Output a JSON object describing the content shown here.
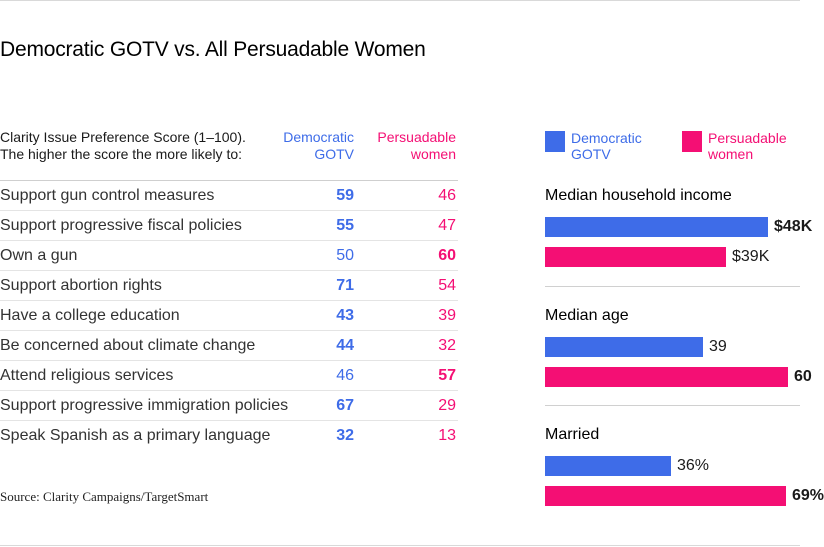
{
  "title": "Democratic GOTV vs. All Persuadable Women",
  "table": {
    "description_lines": [
      "Clarity Issue Preference Score (1–100).",
      "The higher the score the more likely to:"
    ],
    "col_dem_lines": [
      "Democratic",
      "GOTV"
    ],
    "col_per_lines": [
      "Persuadable",
      "women"
    ],
    "rows": [
      {
        "label": "Support gun control measures",
        "dem": "59",
        "per": "46",
        "dem_bold": true,
        "per_bold": false
      },
      {
        "label": "Support progressive fiscal policies",
        "dem": "55",
        "per": "47",
        "dem_bold": true,
        "per_bold": false
      },
      {
        "label": "Own a gun",
        "dem": "50",
        "per": "60",
        "dem_bold": false,
        "per_bold": true
      },
      {
        "label": "Support abortion rights",
        "dem": "71",
        "per": "54",
        "dem_bold": true,
        "per_bold": false
      },
      {
        "label": "Have a college education",
        "dem": "43",
        "per": "39",
        "dem_bold": true,
        "per_bold": false
      },
      {
        "label": "Be concerned about climate change",
        "dem": "44",
        "per": "32",
        "dem_bold": true,
        "per_bold": false
      },
      {
        "label": "Attend religious services",
        "dem": "46",
        "per": "57",
        "dem_bold": false,
        "per_bold": true
      },
      {
        "label": "Support progressive immigration policies",
        "dem": "67",
        "per": "29",
        "dem_bold": true,
        "per_bold": false
      },
      {
        "label": "Speak Spanish as a primary language",
        "dem": "32",
        "per": "13",
        "dem_bold": true,
        "per_bold": false
      }
    ]
  },
  "legend": {
    "dem_lines": [
      "Democratic",
      "GOTV"
    ],
    "per_lines": [
      "Persuadable",
      "women"
    ]
  },
  "source": "Source: Clarity Campaigns/TargetSmart",
  "colors": {
    "dem": "#3e6ce8",
    "per": "#f40f74"
  },
  "chart_data": [
    {
      "type": "bar",
      "title": "Median household income",
      "categories": [
        "Democratic GOTV",
        "Persuadable women"
      ],
      "values": [
        48,
        39
      ],
      "labels": [
        "$48K",
        "$39K"
      ],
      "bold_index": 0,
      "xlim": [
        0,
        55
      ]
    },
    {
      "type": "bar",
      "title": "Median age",
      "categories": [
        "Democratic GOTV",
        "Persuadable women"
      ],
      "values": [
        39,
        60
      ],
      "labels": [
        "39",
        "60"
      ],
      "bold_index": 1,
      "xlim": [
        0,
        63
      ]
    },
    {
      "type": "bar",
      "title": "Married",
      "categories": [
        "Democratic GOTV",
        "Persuadable women"
      ],
      "values": [
        36,
        69
      ],
      "labels": [
        "36%",
        "69%"
      ],
      "bold_index": 1,
      "xlim": [
        0,
        73
      ]
    }
  ]
}
